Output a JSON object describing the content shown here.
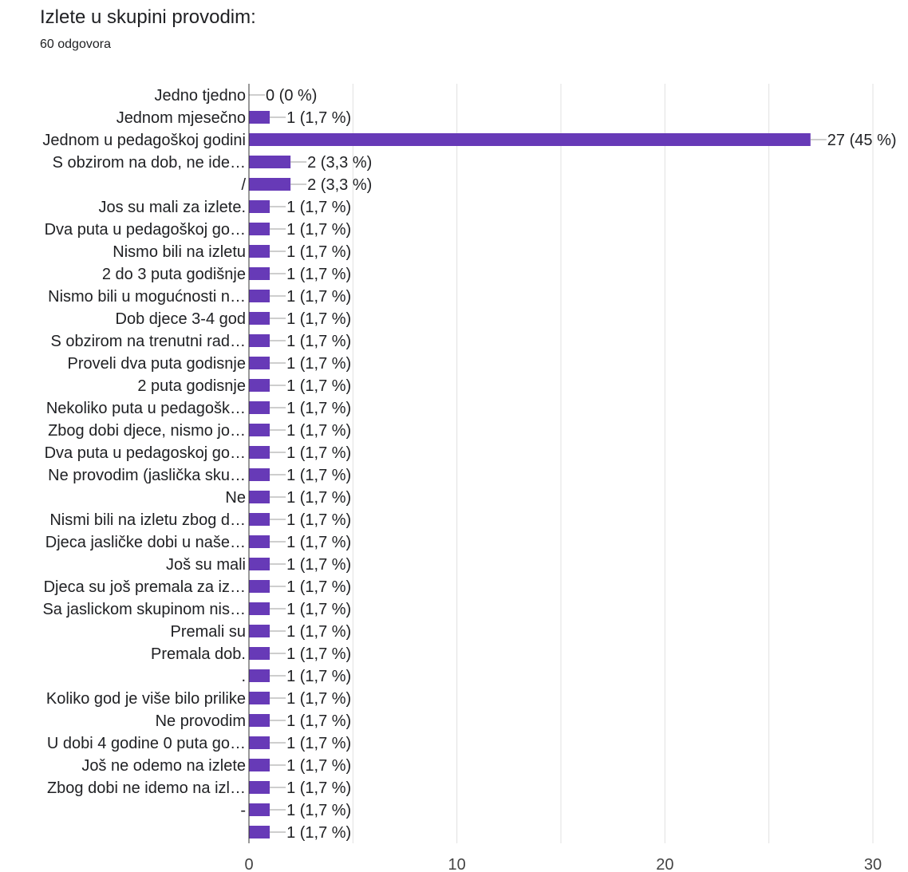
{
  "header": {
    "title": "Izlete u skupini provodim:",
    "subtitle": "60 odgovora"
  },
  "colors": {
    "bar": "#673ab7",
    "grid": "#e0e0e0",
    "axis": "#333333",
    "leader": "#9e9e9e"
  },
  "chart_data": {
    "type": "bar",
    "orientation": "horizontal",
    "title": "Izlete u skupini provodim:",
    "subtitle": "60 odgovora",
    "xlim": [
      0,
      30
    ],
    "xticks": [
      0,
      10,
      20,
      30
    ],
    "grid": true,
    "categories": [
      "Jedno tjedno",
      "Jednom mjesečno",
      "Jednom u pedagoškoj godini",
      "S obzirom na dob, ne ide…",
      "/",
      "Jos su mali za izlete.",
      "Dva puta u pedagoškoj go…",
      "Nismo bili na izletu",
      "2 do 3 puta godišnje",
      "Nismo bili u mogućnosti n…",
      "Dob djece 3-4 god",
      "S obzirom na trenutni rad…",
      "Proveli dva puta godisnje",
      "2 puta godisnje",
      "Nekoliko puta u pedagošk…",
      "Zbog dobi djece, nismo jo…",
      "Dva puta u pedagoskoj go…",
      "Ne provodim (jaslička sku…",
      "Ne",
      "Nismi bili na izletu zbog d…",
      "Djeca jasličke dobi u naše…",
      "Još su mali",
      "Djeca su još premala za iz…",
      "Sa jaslickom skupinom nis…",
      "Premali su",
      "Premala dob.",
      ".",
      "Koliko god je više bilo prilike",
      "Ne provodim",
      "U dobi 4 godine 0 puta go…",
      "Još ne odemo na izlete",
      "Zbog dobi ne idemo na izl…",
      "-",
      ""
    ],
    "values": [
      0,
      1,
      27,
      2,
      2,
      1,
      1,
      1,
      1,
      1,
      1,
      1,
      1,
      1,
      1,
      1,
      1,
      1,
      1,
      1,
      1,
      1,
      1,
      1,
      1,
      1,
      1,
      1,
      1,
      1,
      1,
      1,
      1,
      1
    ],
    "value_labels": [
      "0 (0 %)",
      "1 (1,7 %)",
      "27 (45 %)",
      "2 (3,3 %)",
      "2 (3,3 %)",
      "1 (1,7 %)",
      "1 (1,7 %)",
      "1 (1,7 %)",
      "1 (1,7 %)",
      "1 (1,7 %)",
      "1 (1,7 %)",
      "1 (1,7 %)",
      "1 (1,7 %)",
      "1 (1,7 %)",
      "1 (1,7 %)",
      "1 (1,7 %)",
      "1 (1,7 %)",
      "1 (1,7 %)",
      "1 (1,7 %)",
      "1 (1,7 %)",
      "1 (1,7 %)",
      "1 (1,7 %)",
      "1 (1,7 %)",
      "1 (1,7 %)",
      "1 (1,7 %)",
      "1 (1,7 %)",
      "1 (1,7 %)",
      "1 (1,7 %)",
      "1 (1,7 %)",
      "1 (1,7 %)",
      "1 (1,7 %)",
      "1 (1,7 %)",
      "1 (1,7 %)",
      "1 (1,7 %)"
    ]
  }
}
